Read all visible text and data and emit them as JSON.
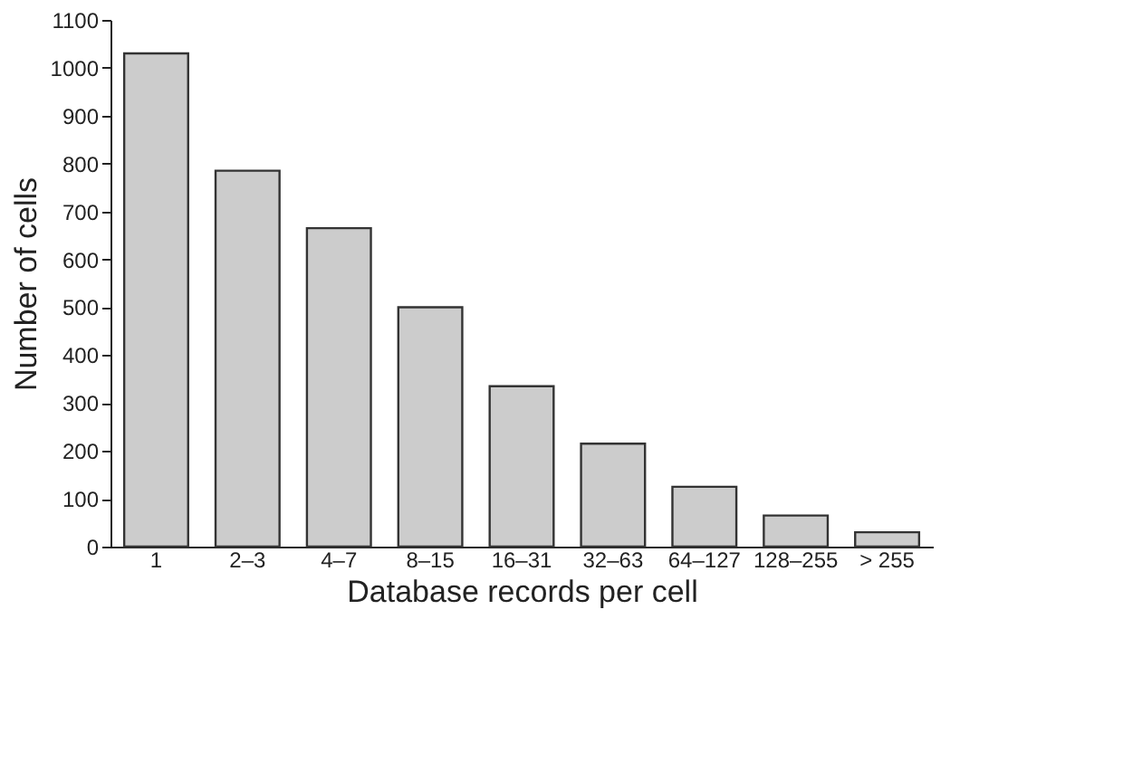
{
  "chart_data": {
    "type": "bar",
    "xlabel": "Database records per cell",
    "ylabel": "Number of cells",
    "categories": [
      "1",
      "2–3",
      "4–7",
      "8–15",
      "16–31",
      "32–63",
      "64–127",
      "128–255",
      "> 255"
    ],
    "values": [
      1030,
      785,
      665,
      500,
      335,
      215,
      125,
      65,
      30
    ],
    "color": "#cccccc",
    "ylim": [
      0,
      1100
    ],
    "yticks": [
      0,
      100,
      200,
      300,
      400,
      500,
      600,
      700,
      800,
      900,
      1000,
      1100
    ],
    "grid": false
  }
}
